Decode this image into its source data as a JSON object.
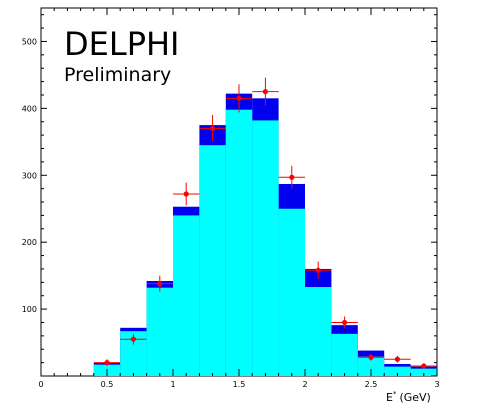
{
  "chart_data": {
    "type": "bar",
    "title": "DELPHI",
    "subtitle": "Preliminary",
    "xlabel": "E",
    "xlabel_superscript": "*",
    "xlabel_unit": "(GeV)",
    "xlim": [
      0,
      3
    ],
    "ylim": [
      0,
      550
    ],
    "x_ticks": [
      "0",
      "0.5",
      "1",
      "1.5",
      "2",
      "2.5",
      "3"
    ],
    "y_ticks": [
      "100",
      "200",
      "300",
      "400",
      "500"
    ],
    "bin_width": 0.2,
    "bin_edges": [
      0.0,
      0.2,
      0.4,
      0.6,
      0.8,
      1.0,
      1.2,
      1.4,
      1.6,
      1.8,
      2.0,
      2.2,
      2.4,
      2.6,
      2.8,
      3.0
    ],
    "series": [
      {
        "values": [
          0,
          0,
          20,
          72,
          142,
          253,
          375,
          422,
          415,
          287,
          160,
          76,
          38,
          18,
          14
        ],
        "color": "#0000ee"
      },
      {
        "values": [
          0,
          0,
          17,
          67,
          132,
          240,
          345,
          398,
          382,
          250,
          133,
          63,
          29,
          14,
          11
        ],
        "color": "#00ffff"
      },
      {
        "x": [
          0.5,
          0.7,
          0.9,
          1.1,
          1.3,
          1.5,
          1.7,
          1.9,
          2.1,
          2.3,
          2.5,
          2.7,
          2.9
        ],
        "values": [
          20,
          55,
          138,
          272,
          370,
          415,
          425,
          297,
          158,
          80,
          28,
          25,
          15
        ],
        "errors": [
          5,
          8,
          12,
          17,
          20,
          21,
          21,
          17,
          13,
          9,
          5,
          5,
          4
        ],
        "color": "#ff0000"
      }
    ],
    "grid": false,
    "legend": "none"
  }
}
